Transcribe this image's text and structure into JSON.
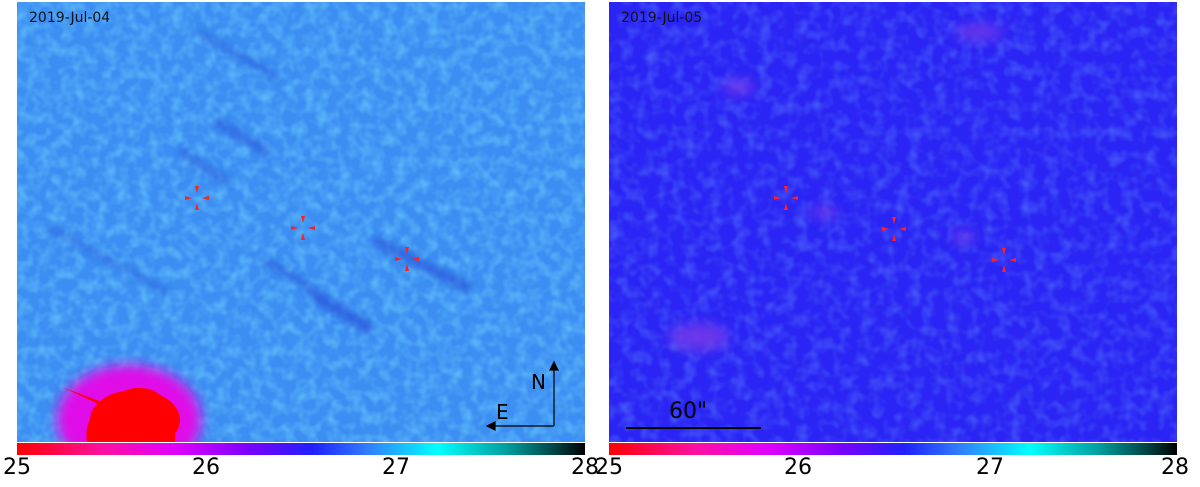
{
  "panels": [
    {
      "date": "2019-Jul-04"
    },
    {
      "date": "2019-Jul-05"
    }
  ],
  "compass": {
    "north": "N",
    "east": "E"
  },
  "scale_bar": {
    "label": "60\""
  },
  "colorbar": {
    "ticks": [
      "25",
      "26",
      "27",
      "28"
    ]
  },
  "colors": {
    "marker": "#ff0000",
    "bg_left": "#3b8cf0",
    "bg_right": "#2a2aff"
  }
}
